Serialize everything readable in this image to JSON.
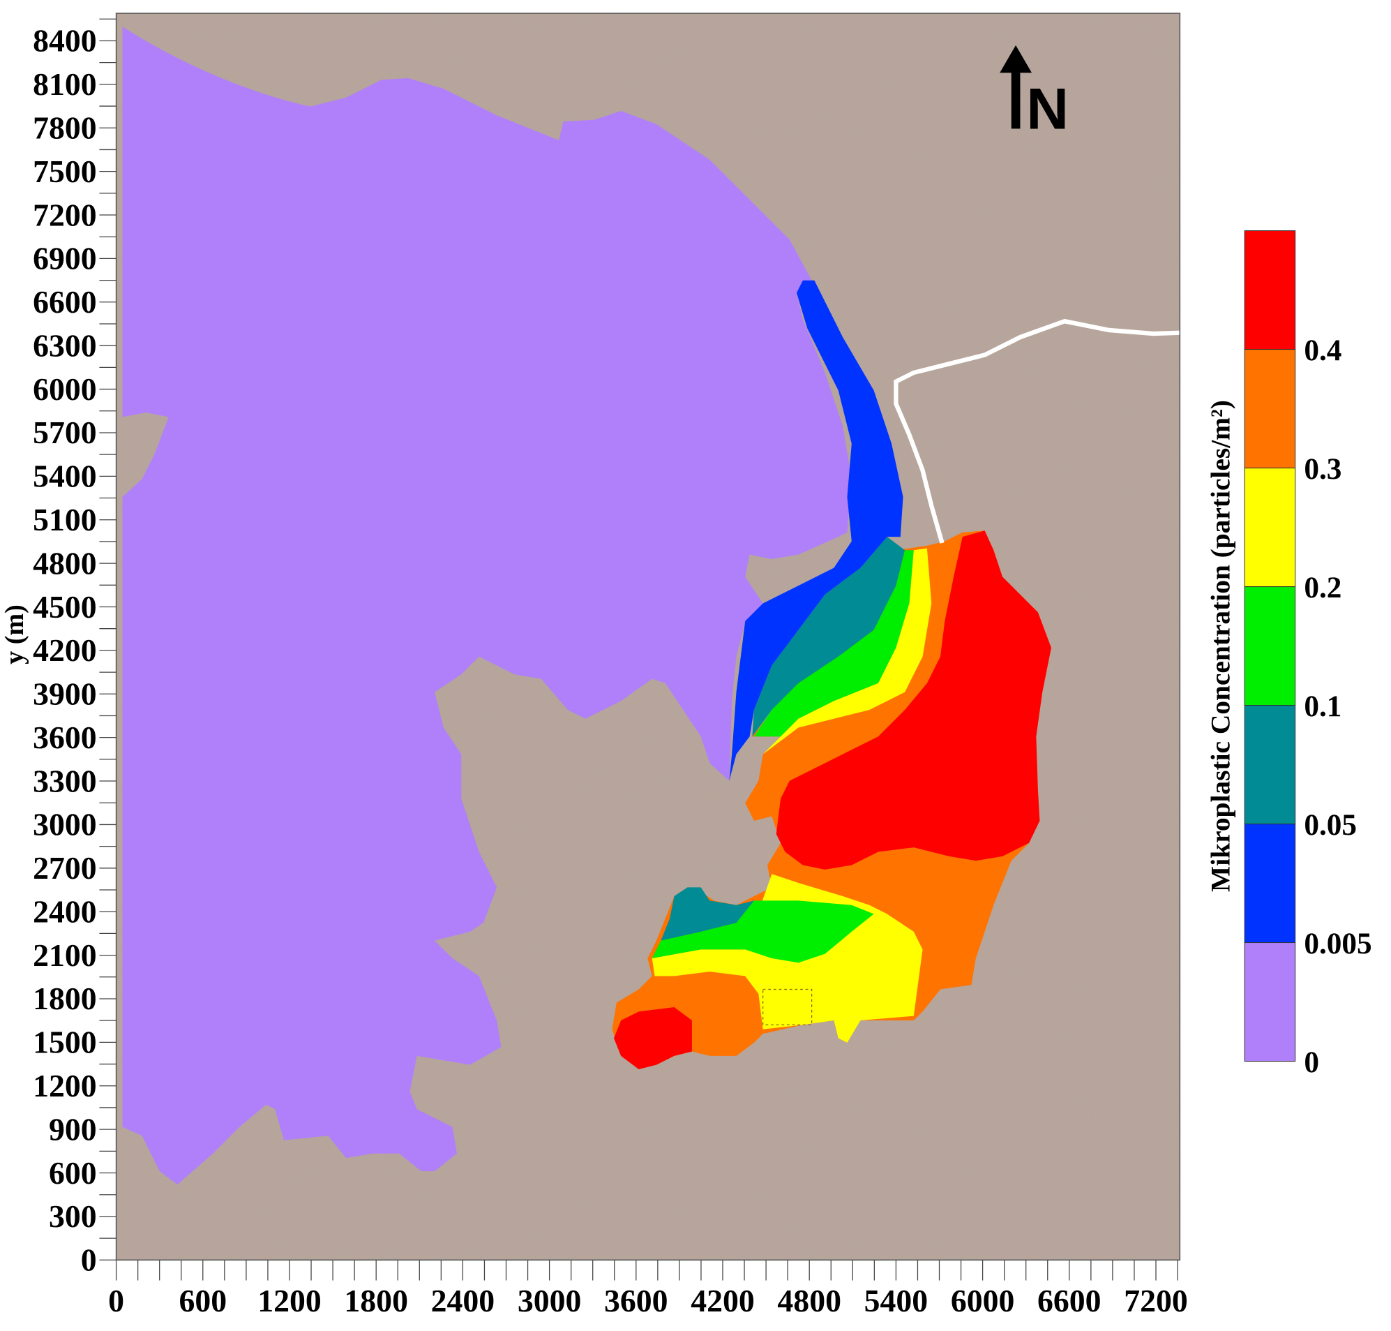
{
  "chart_data": {
    "type": "heatmap",
    "subtype": "filled contour map",
    "title": "",
    "xlabel": "",
    "ylabel": "y (m)",
    "xlim": [
      0,
      7370
    ],
    "ylim": [
      0,
      8590
    ],
    "x_ticks": [
      "0",
      "600",
      "1200",
      "1800",
      "2400",
      "3000",
      "3600",
      "4200",
      "4800",
      "5400",
      "6000",
      "6600",
      "7200"
    ],
    "y_ticks": [
      "0",
      "300",
      "600",
      "900",
      "1200",
      "1500",
      "1800",
      "2100",
      "2400",
      "2700",
      "3000",
      "3300",
      "3600",
      "3900",
      "4200",
      "4500",
      "4800",
      "5100",
      "5400",
      "5700",
      "6000",
      "6300",
      "6600",
      "6900",
      "7200",
      "7500",
      "7800",
      "8100",
      "8400"
    ],
    "grid": false,
    "colorbar": {
      "title": "Mikroplastic Concentration (particles/m²)",
      "placement": "right",
      "levels": [
        "0",
        "0.005",
        "0.05",
        "0.1",
        "0.2",
        "0.3",
        "0.4"
      ],
      "colors": [
        "#b080fa",
        "#0033ff",
        "#008b95",
        "#00ee00",
        "#ffff00",
        "#ff7300",
        "#ff0000"
      ]
    },
    "land_color": "#b8a59b",
    "north_arrow_label": "N"
  }
}
